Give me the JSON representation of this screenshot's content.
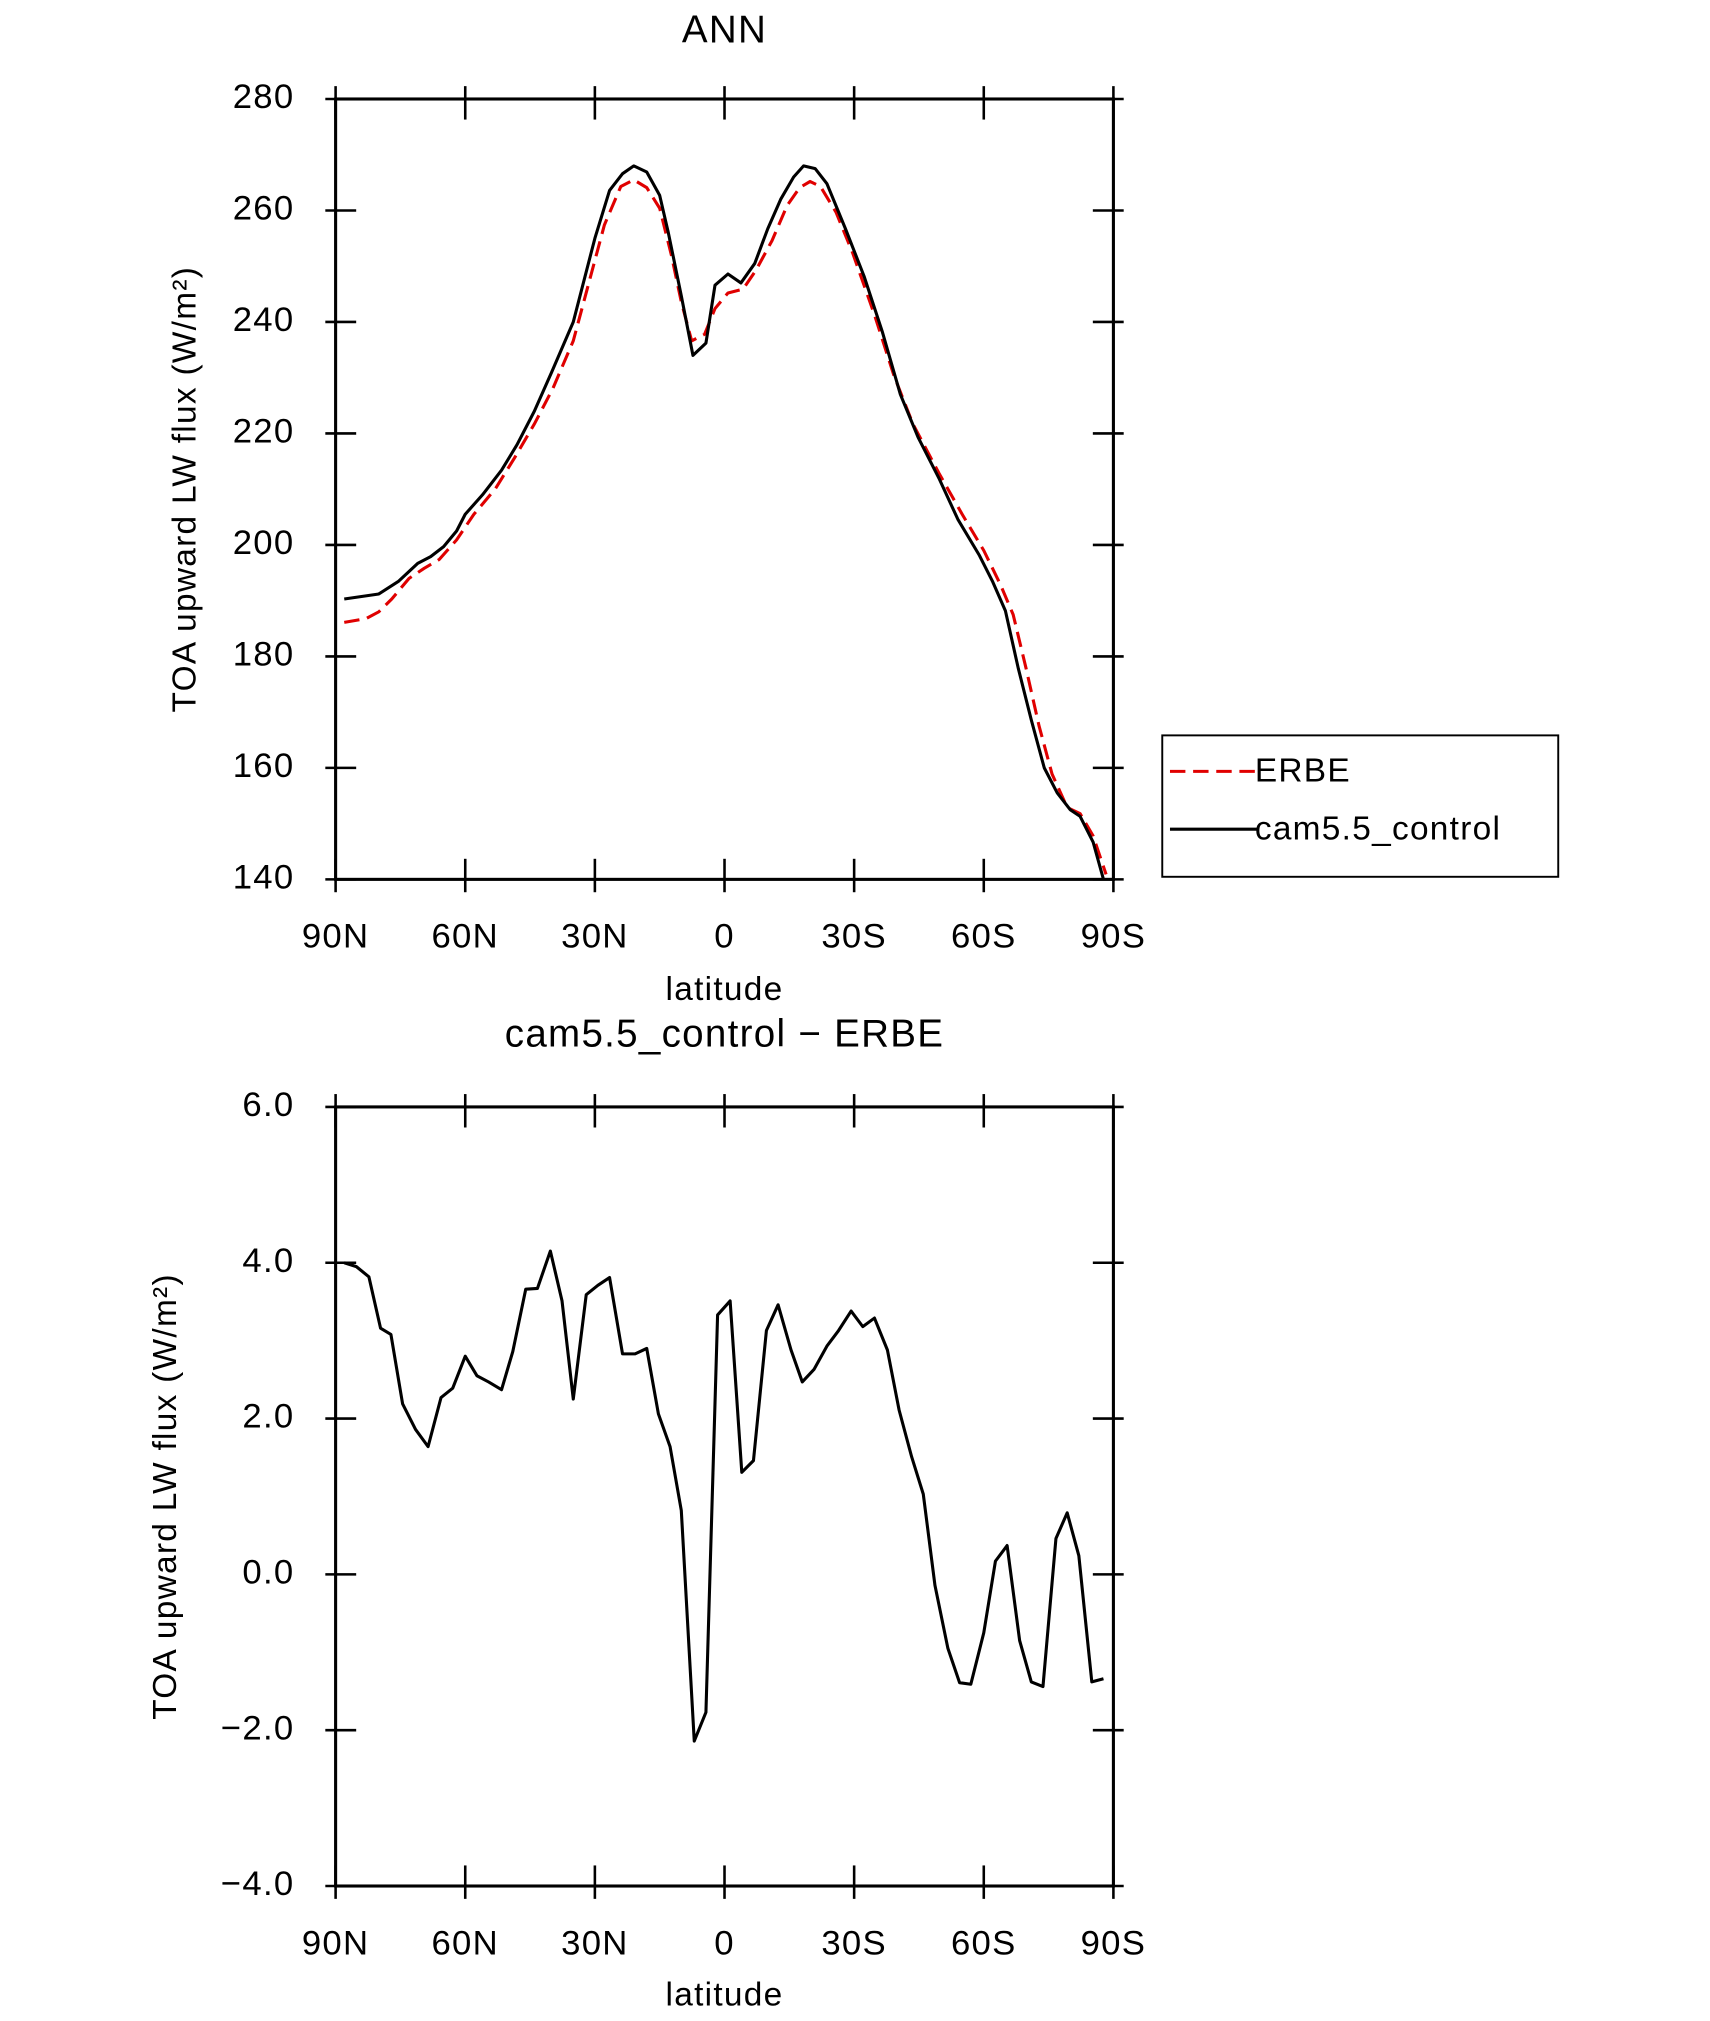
{
  "chart_data": [
    {
      "type": "line",
      "title": "ANN",
      "xlabel": "latitude",
      "ylabel": "TOA upward LW flux (W/m²)",
      "xlim": [
        90,
        -90
      ],
      "xticks": [
        {
          "value": 90,
          "label": "90N"
        },
        {
          "value": 60,
          "label": "60N"
        },
        {
          "value": 30,
          "label": "30N"
        },
        0,
        {
          "value": -30,
          "label": "30S"
        },
        {
          "value": -60,
          "label": "60S"
        },
        {
          "value": -90,
          "label": "90S"
        }
      ],
      "ylim": [
        140,
        280
      ],
      "yticks": [
        140,
        160,
        180,
        200,
        220,
        240,
        260,
        280
      ],
      "legend": "right",
      "series": [
        {
          "name": "ERBE",
          "color": "#e00000",
          "line_style": "dashed",
          "x": [
            88,
            82.9,
            80,
            77,
            73,
            69.5,
            66,
            62,
            58,
            53,
            48.6,
            44,
            39.7,
            35,
            31.4,
            27.8,
            24,
            21,
            18,
            15,
            12.3,
            10,
            7.6,
            4.6,
            2.2,
            -0.8,
            -4.3,
            -7.3,
            -11,
            -14.5,
            -17.4,
            -19.8,
            -22.2,
            -25.8,
            -29.6,
            -34.7,
            -39.2,
            -43.6,
            -49.6,
            -55,
            -60,
            -63.9,
            -66.8,
            -69.8,
            -72.8,
            -75.8,
            -79.3,
            -82.3,
            -85.3,
            -88.3
          ],
          "values": [
            186.1,
            186.8,
            188,
            190.3,
            194,
            195.8,
            197.4,
            200.9,
            205.5,
            210.1,
            215.6,
            221.7,
            228.1,
            236.6,
            247,
            257.4,
            264.3,
            265.5,
            264.1,
            260.4,
            252,
            243.6,
            236.6,
            237.8,
            242.4,
            245.2,
            245.9,
            249.3,
            254.6,
            260.9,
            264.1,
            265.2,
            264.3,
            259.7,
            252.5,
            241.3,
            230.4,
            221.7,
            212.9,
            205.5,
            199,
            192.8,
            187.5,
            177.8,
            167.5,
            158.9,
            152.9,
            151.8,
            147.8,
            140.9
          ]
        },
        {
          "name": "cam5.5_control",
          "color": "#000000",
          "line_style": "solid",
          "x": [
            88,
            80,
            75.4,
            71,
            68,
            65,
            62,
            60,
            56,
            51.6,
            48,
            44,
            40,
            35,
            30,
            26.6,
            23.6,
            21,
            18,
            15,
            13,
            10,
            7.3,
            4.3,
            2.2,
            -0.8,
            -3.8,
            -7,
            -10,
            -13,
            -16,
            -18.3,
            -21,
            -23.7,
            -28,
            -32.3,
            -36.5,
            -40.7,
            -44.8,
            -49.6,
            -54,
            -59,
            -62,
            -65,
            -68,
            -71,
            -74,
            -77,
            -80,
            -82.3,
            -85.3,
            -87.7
          ],
          "values": [
            190.3,
            191.2,
            193.5,
            196.7,
            197.9,
            199.7,
            202.5,
            205.5,
            209,
            213.4,
            218,
            224,
            231,
            240,
            255,
            263.6,
            266.6,
            268,
            266.9,
            262.7,
            256,
            244.7,
            234,
            236.2,
            246.6,
            248.6,
            247,
            250.5,
            256.7,
            262,
            266,
            268,
            267.5,
            264.8,
            256.7,
            248.2,
            238.3,
            227,
            219.3,
            212,
            204.6,
            198.1,
            193.5,
            188.2,
            177.8,
            168.6,
            160,
            155.5,
            152.5,
            151.3,
            146.7,
            140
          ]
        }
      ]
    },
    {
      "type": "line",
      "title": "cam5.5_control − ERBE",
      "xlabel": "latitude",
      "ylabel": "TOA upward LW flux (W/m²)",
      "xlim": [
        90,
        -90
      ],
      "xticks": [
        {
          "value": 90,
          "label": "90N"
        },
        {
          "value": 60,
          "label": "60N"
        },
        {
          "value": 30,
          "label": "30N"
        },
        0,
        {
          "value": -30,
          "label": "30S"
        },
        {
          "value": -60,
          "label": "60S"
        },
        {
          "value": -90,
          "label": "90S"
        }
      ],
      "ylim": [
        -4,
        6
      ],
      "yticks": [
        {
          "value": -4,
          "label": "−4.0"
        },
        {
          "value": -2,
          "label": "−2.0"
        },
        {
          "value": 0,
          "label": "0.0"
        },
        {
          "value": 2,
          "label": "2.0"
        },
        {
          "value": 4,
          "label": "4.0"
        },
        {
          "value": 6,
          "label": "6.0"
        }
      ],
      "color": "#000000",
      "x": [
        88,
        85.2,
        82.3,
        79.6,
        77.2,
        74.5,
        71.5,
        68.6,
        65.6,
        62.9,
        60,
        57.3,
        54.6,
        51.6,
        49,
        46,
        43.3,
        40.3,
        37.6,
        35,
        32,
        29.3,
        26.6,
        23.6,
        20.7,
        18,
        15.3,
        12.6,
        10,
        7,
        4.3,
        1.6,
        -1.3,
        -4,
        -6.7,
        -9.7,
        -12.4,
        -15.4,
        -18,
        -20.7,
        -23.7,
        -26.4,
        -29.3,
        -32,
        -34.7,
        -37.7,
        -40.4,
        -43.3,
        -46,
        -48.7,
        -51.7,
        -54.4,
        -57,
        -60,
        -62.7,
        -65.4,
        -68.3,
        -71,
        -73.7,
        -76.7,
        -79.3,
        -82,
        -85,
        -87.7
      ],
      "values": [
        4.0,
        3.95,
        3.82,
        3.16,
        3.08,
        2.19,
        1.86,
        1.64,
        2.27,
        2.39,
        2.8,
        2.55,
        2.47,
        2.37,
        2.86,
        3.66,
        3.67,
        4.15,
        3.51,
        2.25,
        3.59,
        3.71,
        3.81,
        2.83,
        2.83,
        2.9,
        2.06,
        1.64,
        0.82,
        -2.14,
        -1.77,
        3.33,
        3.51,
        1.31,
        1.46,
        3.13,
        3.46,
        2.88,
        2.47,
        2.63,
        2.93,
        3.13,
        3.38,
        3.18,
        3.29,
        2.88,
        2.11,
        1.51,
        1.03,
        -0.14,
        -0.95,
        -1.39,
        -1.41,
        -0.75,
        0.17,
        0.37,
        -0.85,
        -1.38,
        -1.44,
        0.46,
        0.79,
        0.24,
        -1.38,
        -1.34
      ]
    }
  ]
}
